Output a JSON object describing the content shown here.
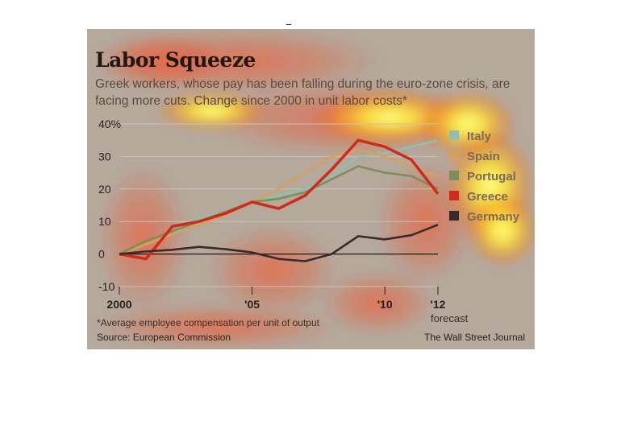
{
  "header": {
    "title": "Labor Squeeze",
    "subtitle": "Greek workers, whose pay has been falling during the euro-zone crisis, are facing more cuts. Change since 2000 in unit labor costs*"
  },
  "footer": {
    "note": "*Average employee compensation per unit of output",
    "source": "Source: European Commission",
    "credit": "The Wall Street Journal"
  },
  "chart_data": {
    "type": "line",
    "title": "Labor Squeeze",
    "xlabel": "",
    "ylabel": "",
    "x": [
      2000,
      2001,
      2002,
      2003,
      2004,
      2005,
      2006,
      2007,
      2008,
      2009,
      2010,
      2011,
      2012
    ],
    "xlim": [
      2000,
      2012
    ],
    "ylim": [
      -10,
      40
    ],
    "grid": true,
    "y_ticks": [
      40,
      30,
      20,
      10,
      0,
      -10
    ],
    "y_tick_labels": [
      "40%",
      "30",
      "20",
      "10",
      "0",
      "-10"
    ],
    "x_ticks": [
      2000,
      2005,
      2010,
      2012
    ],
    "x_tick_labels": [
      "2000",
      "'05",
      "'10",
      "'12"
    ],
    "forecast_label": "forecast",
    "legend_position": "right",
    "series": [
      {
        "name": "Italy",
        "color": "#8fbfae",
        "values": [
          0,
          3,
          6,
          11,
          13,
          16,
          18,
          20,
          24,
          30,
          31,
          33,
          35
        ]
      },
      {
        "name": "Spain",
        "color": "#d6a05c",
        "values": [
          0,
          3,
          6,
          9,
          12,
          16,
          20,
          25,
          30,
          32,
          30,
          27,
          24
        ]
      },
      {
        "name": "Portugal",
        "color": "#7c8f5a",
        "values": [
          0,
          4,
          7,
          10,
          13,
          16,
          17,
          19,
          23,
          27,
          25,
          24,
          20
        ]
      },
      {
        "name": "Greece",
        "color": "#cf2a1a",
        "values": [
          0,
          -1.5,
          8.5,
          10,
          12.5,
          16,
          14,
          18,
          26,
          35,
          33,
          29,
          18.5
        ]
      },
      {
        "name": "Germany",
        "color": "#3a2b2b",
        "values": [
          0,
          0.8,
          1.3,
          2.2,
          1.5,
          0.5,
          -1.5,
          -2.2,
          0,
          5.5,
          4.5,
          5.8,
          9
        ]
      }
    ]
  }
}
